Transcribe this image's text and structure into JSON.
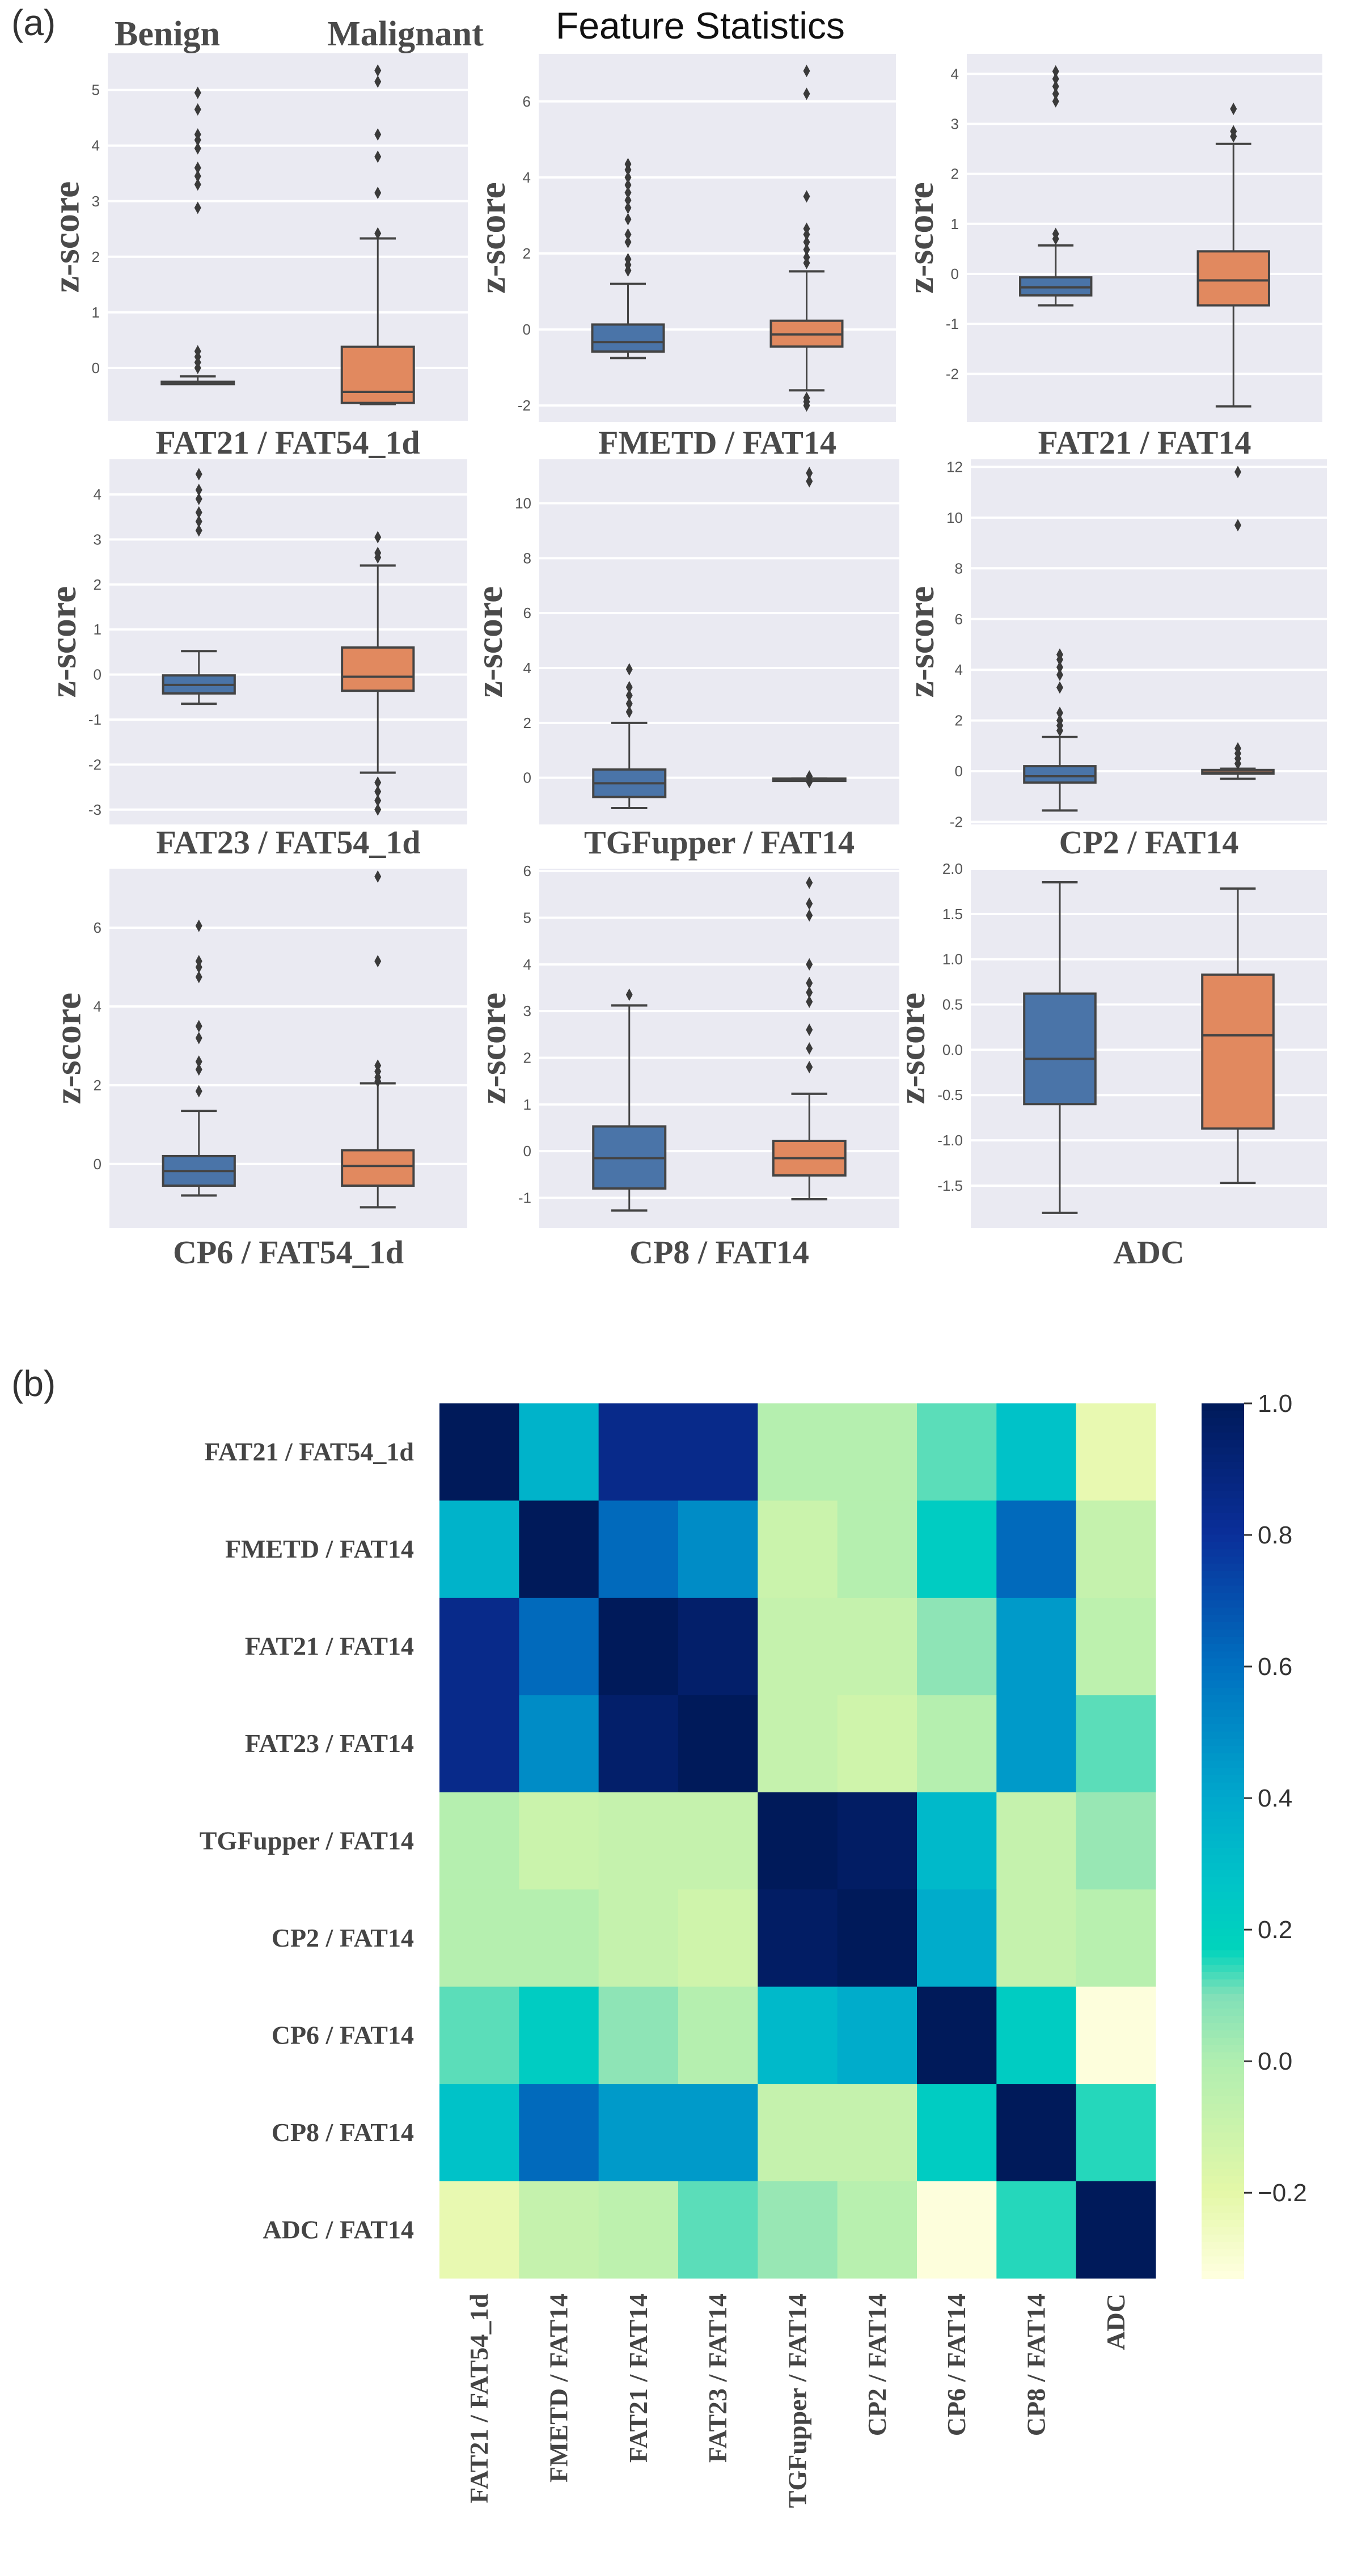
{
  "figure": {
    "panel_a_label": "(a)",
    "panel_b_label": "(b)",
    "title": "Feature Statistics",
    "group_labels": [
      "Benign",
      "Malignant"
    ],
    "colors": {
      "benign": "#4a74a8",
      "malignant": "#e1895f",
      "plot_background": "#eaeaf2",
      "grid": "#ffffff"
    }
  },
  "chart_data": [
    {
      "type": "box",
      "title": "FAT21 / FAT54_1d",
      "ylabel": "z-score",
      "ylim": [
        -0.95,
        5.66
      ],
      "yticks": [
        0,
        1,
        2,
        3,
        4,
        5
      ],
      "grid": true,
      "groups": [
        {
          "name": "Benign",
          "whisker_low": -0.28,
          "q1": -0.28,
          "median": -0.27,
          "q3": -0.25,
          "whisker_high": -0.15,
          "outliers": [
            0.0,
            0.1,
            0.2,
            0.3,
            2.88,
            3.3,
            3.45,
            3.6,
            3.95,
            4.1,
            4.2,
            4.65,
            4.95
          ]
        },
        {
          "name": "Malignant",
          "whisker_low": -0.65,
          "q1": -0.63,
          "median": -0.43,
          "q3": 0.38,
          "whisker_high": 2.33,
          "outliers": [
            2.42,
            3.15,
            3.8,
            4.2,
            5.15,
            5.35
          ]
        }
      ]
    },
    {
      "type": "box",
      "title": "FMETD / FAT14",
      "ylabel": "z-score",
      "ylim": [
        -2.43,
        7.25
      ],
      "yticks": [
        -2,
        0,
        2,
        4,
        6
      ],
      "grid": true,
      "groups": [
        {
          "name": "Benign",
          "whisker_low": -0.75,
          "q1": -0.58,
          "median": -0.33,
          "q3": 0.13,
          "whisker_high": 1.2,
          "outliers": [
            1.55,
            1.7,
            1.85,
            2.3,
            2.5,
            2.9,
            3.2,
            3.4,
            3.6,
            3.8,
            4.0,
            4.2,
            4.35
          ]
        },
        {
          "name": "Malignant",
          "whisker_low": -1.6,
          "q1": -0.45,
          "median": -0.13,
          "q3": 0.23,
          "whisker_high": 1.53,
          "outliers": [
            -2.0,
            -1.9,
            -1.8,
            1.75,
            1.9,
            2.1,
            2.3,
            2.5,
            2.65,
            3.5,
            6.2,
            6.8
          ]
        }
      ]
    },
    {
      "type": "box",
      "title": "FAT21 / FAT14",
      "ylabel": "z-score",
      "ylim": [
        -2.96,
        4.4
      ],
      "yticks": [
        -2,
        -1,
        0,
        1,
        2,
        3,
        4
      ],
      "grid": true,
      "groups": [
        {
          "name": "Benign",
          "whisker_low": -0.63,
          "q1": -0.43,
          "median": -0.27,
          "q3": -0.07,
          "whisker_high": 0.57,
          "outliers": [
            0.7,
            0.8,
            3.45,
            3.6,
            3.75,
            3.9,
            4.05
          ]
        },
        {
          "name": "Malignant",
          "whisker_low": -2.65,
          "q1": -0.63,
          "median": -0.13,
          "q3": 0.45,
          "whisker_high": 2.6,
          "outliers": [
            2.75,
            2.85,
            3.3
          ]
        }
      ]
    },
    {
      "type": "box",
      "title": "FAT23 / FAT54_1d",
      "ylabel": "z-score",
      "ylim": [
        -3.33,
        4.78
      ],
      "yticks": [
        -3,
        -2,
        -1,
        0,
        1,
        2,
        3,
        4
      ],
      "grid": true,
      "groups": [
        {
          "name": "Benign",
          "whisker_low": -0.65,
          "q1": -0.42,
          "median": -0.23,
          "q3": -0.02,
          "whisker_high": 0.52,
          "outliers": [
            3.2,
            3.4,
            3.6,
            3.9,
            4.1,
            4.45
          ]
        },
        {
          "name": "Malignant",
          "whisker_low": -2.18,
          "q1": -0.36,
          "median": -0.05,
          "q3": 0.6,
          "whisker_high": 2.42,
          "outliers": [
            2.6,
            2.7,
            3.05,
            -2.4,
            -2.6,
            -2.8,
            -3.0
          ]
        }
      ]
    },
    {
      "type": "box",
      "title": "TGFupper / FAT14",
      "ylabel": "z-score",
      "ylim": [
        -1.7,
        11.6
      ],
      "yticks": [
        0,
        2,
        4,
        6,
        8,
        10
      ],
      "grid": true,
      "groups": [
        {
          "name": "Benign",
          "whisker_low": -1.1,
          "q1": -0.7,
          "median": -0.2,
          "q3": 0.3,
          "whisker_high": 2.0,
          "outliers": [
            2.4,
            2.7,
            3.0,
            3.3,
            3.95
          ]
        },
        {
          "name": "Malignant",
          "whisker_low": -0.1,
          "q1": -0.1,
          "median": -0.05,
          "q3": -0.03,
          "whisker_high": -0.03,
          "outliers": [
            0.05,
            -0.15,
            10.8,
            11.1
          ]
        }
      ]
    },
    {
      "type": "box",
      "title": "CP2 / FAT14",
      "ylabel": "z-score",
      "ylim": [
        -2.1,
        12.3
      ],
      "yticks": [
        -2,
        0,
        2,
        4,
        6,
        8,
        10,
        12
      ],
      "grid": true,
      "groups": [
        {
          "name": "Benign",
          "whisker_low": -1.55,
          "q1": -0.45,
          "median": -0.2,
          "q3": 0.2,
          "whisker_high": 1.35,
          "outliers": [
            1.6,
            1.8,
            2.0,
            2.3,
            3.3,
            3.8,
            4.1,
            4.4,
            4.6
          ]
        },
        {
          "name": "Malignant",
          "whisker_low": -0.3,
          "q1": -0.1,
          "median": -0.05,
          "q3": 0.05,
          "whisker_high": 0.1,
          "outliers": [
            0.3,
            0.5,
            0.7,
            0.9,
            9.7,
            11.8
          ]
        }
      ]
    },
    {
      "type": "box",
      "title": "CP6 / FAT54_1d",
      "ylabel": "z-score",
      "ylim": [
        -1.63,
        7.5
      ],
      "yticks": [
        0,
        2,
        4,
        6
      ],
      "grid": true,
      "groups": [
        {
          "name": "Benign",
          "whisker_low": -0.8,
          "q1": -0.55,
          "median": -0.18,
          "q3": 0.2,
          "whisker_high": 1.35,
          "outliers": [
            1.85,
            2.4,
            2.6,
            3.2,
            3.5,
            4.75,
            5.0,
            5.15,
            6.05
          ]
        },
        {
          "name": "Malignant",
          "whisker_low": -1.1,
          "q1": -0.55,
          "median": -0.05,
          "q3": 0.35,
          "whisker_high": 2.05,
          "outliers": [
            2.1,
            2.2,
            2.35,
            2.5,
            5.15,
            7.3
          ]
        }
      ]
    },
    {
      "type": "box",
      "title": "CP8 / FAT14",
      "ylabel": "z-score",
      "ylim": [
        -1.65,
        6.05
      ],
      "yticks": [
        -1,
        0,
        1,
        2,
        3,
        4,
        5,
        6
      ],
      "grid": true,
      "groups": [
        {
          "name": "Benign",
          "whisker_low": -1.27,
          "q1": -0.8,
          "median": -0.15,
          "q3": 0.53,
          "whisker_high": 3.12,
          "outliers": [
            3.35
          ]
        },
        {
          "name": "Malignant",
          "whisker_low": -1.03,
          "q1": -0.52,
          "median": -0.15,
          "q3": 0.22,
          "whisker_high": 1.23,
          "outliers": [
            1.8,
            2.2,
            2.6,
            3.2,
            3.4,
            3.6,
            4.0,
            5.05,
            5.3,
            5.75
          ]
        }
      ]
    },
    {
      "type": "box",
      "title": "ADC",
      "ylabel": "z-score",
      "ylim": [
        -1.97,
        2.0
      ],
      "yticks": [
        -1.5,
        -1.0,
        -0.5,
        0.0,
        0.5,
        1.0,
        1.5,
        2.0
      ],
      "grid": true,
      "groups": [
        {
          "name": "Benign",
          "whisker_low": -1.8,
          "q1": -0.6,
          "median": -0.1,
          "q3": 0.62,
          "whisker_high": 1.85,
          "outliers": []
        },
        {
          "name": "Malignant",
          "whisker_low": -1.47,
          "q1": -0.87,
          "median": 0.16,
          "q3": 0.83,
          "whisker_high": 1.78,
          "outliers": []
        }
      ]
    },
    {
      "type": "heatmap",
      "row_labels": [
        "FAT21 / FAT54_1d",
        "FMETD / FAT14",
        "FAT21 / FAT14",
        "FAT23 / FAT14",
        "TGFupper / FAT14",
        "CP2 / FAT14",
        "CP6 / FAT14",
        "CP8 / FAT14",
        "ADC / FAT14"
      ],
      "col_labels": [
        "FAT21 / FAT54_1d",
        "FMETD / FAT14",
        "FAT21 / FAT14",
        "FAT23 / FAT14",
        "TGFupper / FAT14",
        "CP2 / FAT14",
        "CP6 / FAT14",
        "CP8 / FAT14",
        "ADC"
      ],
      "values": [
        [
          1.0,
          0.35,
          0.85,
          0.85,
          -0.02,
          -0.02,
          0.12,
          0.28,
          -0.22
        ],
        [
          0.35,
          1.0,
          0.62,
          0.5,
          -0.1,
          -0.02,
          0.22,
          0.62,
          -0.08
        ],
        [
          0.85,
          0.62,
          1.0,
          0.95,
          -0.08,
          -0.08,
          0.07,
          0.45,
          -0.05
        ],
        [
          0.85,
          0.5,
          0.95,
          1.0,
          -0.08,
          -0.12,
          -0.02,
          0.45,
          0.12
        ],
        [
          -0.02,
          -0.1,
          -0.08,
          -0.08,
          1.0,
          0.97,
          0.32,
          -0.08,
          0.05
        ],
        [
          -0.02,
          -0.02,
          -0.08,
          -0.12,
          0.97,
          1.0,
          0.38,
          -0.08,
          -0.03
        ],
        [
          0.12,
          0.22,
          0.07,
          -0.02,
          0.32,
          0.38,
          1.0,
          0.22,
          -0.32
        ],
        [
          0.28,
          0.62,
          0.45,
          0.45,
          -0.08,
          -0.08,
          0.22,
          1.0,
          0.15
        ],
        [
          -0.22,
          -0.08,
          -0.05,
          0.12,
          0.05,
          -0.03,
          -0.32,
          0.15,
          1.0
        ]
      ],
      "colorbar": {
        "range": [
          -0.33,
          1.0
        ],
        "ticks": [
          1.0,
          0.8,
          0.6,
          0.4,
          0.2,
          0.0,
          -0.2
        ],
        "tick_labels": [
          "1.0",
          "0.8",
          "0.6",
          "0.4",
          "0.2",
          "0.0",
          "−0.2"
        ]
      },
      "colormap": "YlGnBu",
      "colormap_stops": [
        [
          -0.33,
          "#ffffe0"
        ],
        [
          -0.2,
          "#e4f8a8"
        ],
        [
          0.0,
          "#b0eeb0"
        ],
        [
          0.1,
          "#80e0b8"
        ],
        [
          0.17,
          "#00d4bc"
        ],
        [
          0.27,
          "#00c4c8"
        ],
        [
          0.4,
          "#00a8cc"
        ],
        [
          0.6,
          "#0070c0"
        ],
        [
          0.8,
          "#0a2f9a"
        ],
        [
          1.0,
          "#001a5a"
        ]
      ]
    }
  ]
}
